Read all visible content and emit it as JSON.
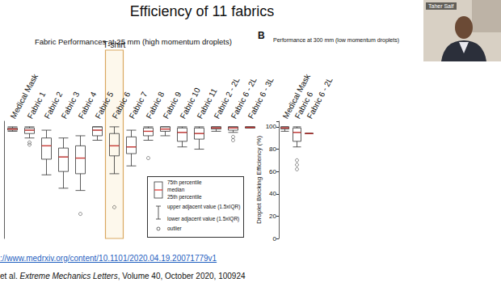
{
  "slide": {
    "title": "Efficiency of 11 fabrics",
    "speaker": "Taher Saif",
    "link": "://www.medrxiv.org/content/10.1101/2020.04.19.20071779v1",
    "citation": [
      {
        "text": "et al. "
      },
      {
        "text": "Extreme Mechanics Letters",
        "italic": true
      },
      {
        "text": ", Volume 40, October 2020, 100924"
      }
    ],
    "box_legend": [
      "75th percentile",
      "median",
      "25th percentile",
      "upper adjacent value (1.5xIQR)",
      "lower adjacent value (1.5xIQR)",
      "outlier"
    ]
  },
  "chart_data": [
    {
      "type": "boxplot",
      "title": "Fabric Performances at 25 mm (high momentum droplets)",
      "categories": [
        "Medical Mask",
        "Fabric 1",
        "Fabric 2",
        "Fabric 3",
        "Fabric 4",
        "Fabric 5",
        "Fabric 6",
        "Fabric 7",
        "Fabric 8",
        "Fabric 9",
        "Fabric 10",
        "Fabric 11",
        "Fabric 2 - 2L",
        "Fabric 6 - 2L",
        "Fabric 6 - 3L"
      ],
      "values": [
        [
          96,
          97,
          98,
          99,
          100
        ],
        [
          90,
          94,
          97,
          99,
          100
        ],
        [
          57,
          71,
          83,
          90,
          97
        ],
        [
          45,
          60,
          73,
          81,
          90
        ],
        [
          43,
          58,
          72,
          83,
          92
        ],
        [
          88,
          92,
          97,
          100,
          100
        ],
        [
          58,
          74,
          83,
          94,
          100
        ],
        [
          65,
          76,
          82,
          91,
          97
        ],
        [
          88,
          92,
          96,
          99,
          100
        ],
        [
          92,
          96,
          98,
          100,
          100
        ],
        [
          82,
          87,
          95,
          99,
          100
        ],
        [
          80,
          89,
          94,
          99,
          100
        ],
        [
          96,
          98,
          99,
          100,
          100
        ],
        [
          95,
          97,
          99,
          100,
          100
        ],
        [
          99,
          99,
          99.5,
          100,
          100
        ]
      ],
      "outliers": [
        [],
        [
          86,
          84
        ],
        [],
        [],
        [
          22
        ],
        [],
        [
          28
        ],
        [],
        [
          72
        ],
        [],
        [],
        [],
        [],
        [
          91,
          88
        ],
        []
      ],
      "color": "#333333",
      "ylim": [
        0,
        105
      ],
      "tick_labels": "x",
      "grid": false,
      "annotations": [
        {
          "text": "T-shirt",
          "category": "Fabric 6"
        }
      ]
    },
    {
      "type": "boxplot",
      "title": "Performance at 300 mm (low momentum droplets)",
      "ylabel": "Droplet Blocking Efficiency (%)",
      "categories": [
        "Medical Mask",
        "Fabric 6",
        "Fabric 6 - 2L"
      ],
      "values": [
        [
          96,
          98,
          99,
          100,
          100
        ],
        [
          82,
          87,
          95,
          99,
          100
        ],
        [
          94,
          94,
          94,
          94,
          94
        ]
      ],
      "outliers": [
        [],
        [
          70,
          66,
          62
        ],
        []
      ],
      "color": "#333333",
      "ylim": [
        0,
        105
      ],
      "yticks": [
        0,
        20,
        40,
        60,
        80,
        100
      ],
      "grid": false,
      "annotations": [
        {
          "text": "B"
        }
      ]
    }
  ]
}
